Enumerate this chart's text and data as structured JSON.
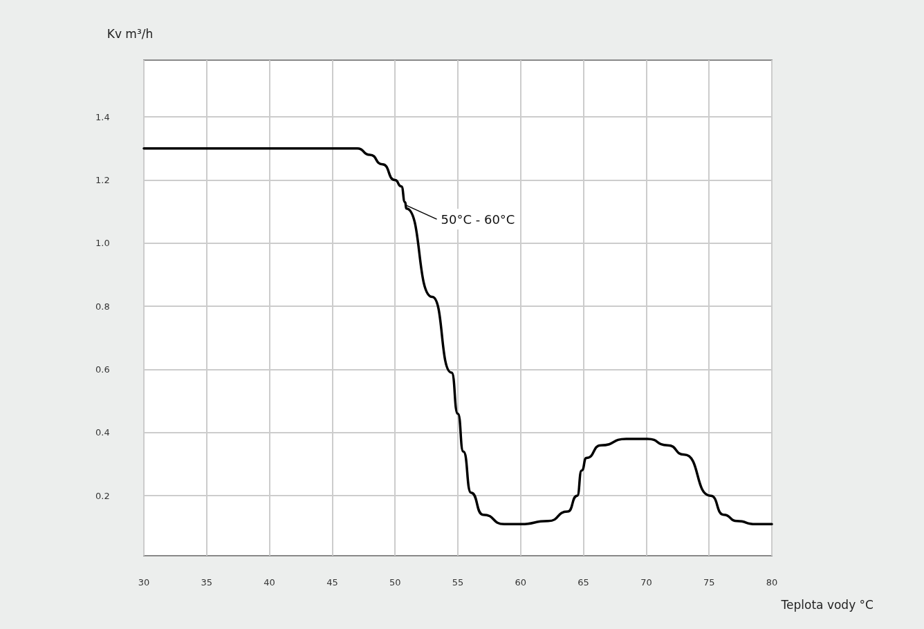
{
  "chart_data": {
    "type": "line",
    "xlabel": "Teplota vody °C",
    "ylabel": "Kv m³/h",
    "x": [
      30,
      35,
      40,
      45,
      47,
      48,
      49,
      50,
      50.5,
      50.8,
      50.9,
      52.96,
      54.5,
      55.0,
      55.44,
      56.05,
      57.0,
      58.7,
      60,
      62.2,
      63.75,
      64.5,
      64.86,
      65.24,
      66.4,
      68.4,
      70.1,
      71.7,
      73.04,
      75.13,
      76.17,
      77.2,
      78.7,
      80
    ],
    "series": [
      {
        "color": "#000000",
        "values": [
          1.3,
          1.3,
          1.3,
          1.3,
          1.3,
          1.28,
          1.25,
          1.2,
          1.18,
          1.13,
          1.11,
          0.83,
          0.59,
          0.46,
          0.34,
          0.21,
          0.14,
          0.11,
          0.11,
          0.12,
          0.15,
          0.2,
          0.28,
          0.32,
          0.36,
          0.38,
          0.38,
          0.36,
          0.33,
          0.2,
          0.14,
          0.12,
          0.11,
          0.11
        ]
      }
    ],
    "xlim": [
      30,
      80
    ],
    "xticks": [
      30,
      35,
      40,
      45,
      50,
      55,
      60,
      65,
      70,
      75,
      80
    ],
    "ylim": [
      0.01,
      1.58
    ],
    "yticks": [
      0.2,
      0.4,
      0.6,
      0.8,
      {
        "value": 1,
        "label": "1.0"
      },
      1.2,
      1.4
    ],
    "annotations": [
      {
        "text": "50°C - 60°C",
        "x": 50.9,
        "y": 1.12
      }
    ],
    "grid": true,
    "marker": "none",
    "line_style": "solid"
  }
}
